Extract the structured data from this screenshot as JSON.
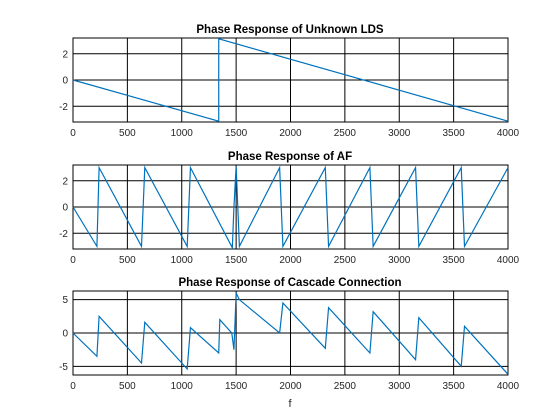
{
  "colors": {
    "series": "#0072bd",
    "grid": "#000000",
    "background": "#ffffff",
    "tick_text": "#262626"
  },
  "xlabel": "f",
  "chart_data": [
    {
      "type": "line",
      "title": "Phase Response of Unknown LDS",
      "xlim": [
        0,
        4000
      ],
      "ylim": [
        -3.2,
        3.2
      ],
      "xticks": [
        0,
        500,
        1000,
        1500,
        2000,
        2500,
        3000,
        3500,
        4000
      ],
      "yticks": [
        -2,
        0,
        2
      ],
      "grid": true,
      "x": [
        0,
        1340,
        1340,
        4000
      ],
      "y": [
        0,
        -3.14,
        3.14,
        -3.14
      ]
    },
    {
      "type": "line",
      "title": "Phase Response of AF",
      "xlim": [
        0,
        4000
      ],
      "ylim": [
        -3.2,
        3.2
      ],
      "xticks": [
        0,
        500,
        1000,
        1500,
        2000,
        2500,
        3000,
        3500,
        4000
      ],
      "yticks": [
        -2,
        0,
        2
      ],
      "grid": true,
      "x": [
        0,
        220,
        240,
        630,
        660,
        1050,
        1080,
        1465,
        1480,
        1500,
        1530,
        1900,
        1930,
        2320,
        2350,
        2730,
        2760,
        3150,
        3180,
        3570,
        3600,
        4000
      ],
      "y": [
        0,
        -3.0,
        3.0,
        -3.0,
        3.0,
        -3.0,
        3.0,
        -3.1,
        0.0,
        3.1,
        -3.0,
        3.0,
        -3.0,
        3.0,
        -3.0,
        3.0,
        -3.0,
        3.0,
        -3.0,
        3.0,
        -3.0,
        3.0
      ]
    },
    {
      "type": "line",
      "title": "Phase Response of Cascade Connection",
      "xlim": [
        0,
        4000
      ],
      "ylim": [
        -6.3,
        6.3
      ],
      "xticks": [
        0,
        500,
        1000,
        1500,
        2000,
        2500,
        3000,
        3500,
        4000
      ],
      "yticks": [
        -5,
        0,
        5
      ],
      "grid": true,
      "x": [
        0,
        220,
        240,
        630,
        660,
        1050,
        1080,
        1340,
        1350,
        1460,
        1480,
        1500,
        1530,
        1900,
        1930,
        2320,
        2350,
        2730,
        2760,
        3150,
        3180,
        3570,
        3600,
        4000
      ],
      "y": [
        0,
        -3.5,
        2.5,
        -4.5,
        1.6,
        -5.4,
        0.8,
        -3.0,
        2.0,
        0.0,
        -2.5,
        6.0,
        5.0,
        0.0,
        4.5,
        -2.3,
        3.8,
        -3.0,
        3.2,
        -4.0,
        2.3,
        -5.0,
        1.0,
        -6.2
      ]
    }
  ]
}
